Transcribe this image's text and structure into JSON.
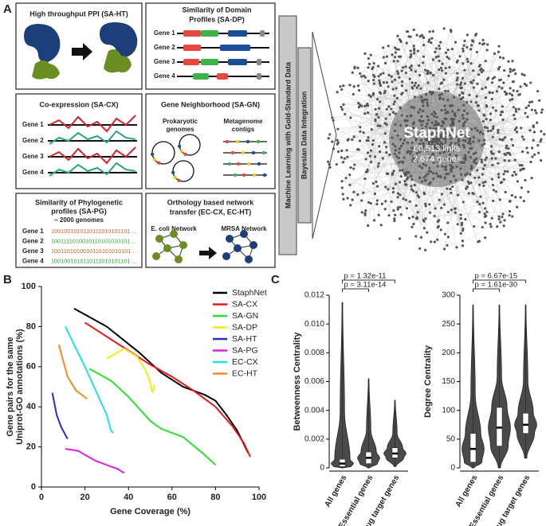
{
  "panel_labels": [
    "A",
    "B",
    "C"
  ],
  "diagram": {
    "ppi": {
      "title": "High throughput PPI (SA-HT)"
    },
    "domain": {
      "title": [
        "Similarity of Domain",
        "Profiles (SA-DP)"
      ],
      "genes": [
        "Gene 1",
        "Gene 2",
        "Gene 3",
        "Gene 4"
      ]
    },
    "coexpression": {
      "title": "Co-expression (SA-CX)",
      "genes": [
        "Gene 1",
        "Gene 2",
        "Gene 3",
        "Gene 4"
      ]
    },
    "neighborhood": {
      "title": "Gene Neighborhood (SA-GN)",
      "left": [
        "Prokaryotic",
        "genomes"
      ],
      "right": [
        "Metagenome",
        "contigs"
      ]
    },
    "phylogenetic": {
      "title": [
        "Similarity of Phylogenetic",
        "profiles (SA-PG)"
      ],
      "subtitle": "~ 2000 genomes",
      "genes": [
        "Gene 1",
        "Gene 2",
        "Gene 3",
        "Gene 4"
      ],
      "profiles": [
        "1001001010110111010101101 ...",
        "1001111010010110101010101 ...",
        "1001101010010110101010101 ...",
        "1001001010110111010101101 ..."
      ]
    },
    "orthology": {
      "title": [
        "Orthology based network",
        "transfer (EC-CX, EC-HT)"
      ],
      "left": "E. coli Network",
      "right": "MRSA Network"
    },
    "integration": [
      "Machine Learning with Gold-Standard Data",
      "Bayesian Data Integration"
    ],
    "network": {
      "title": "StaphNet",
      "links": "60,513 links",
      "genes": "2,674 genes"
    }
  },
  "chart_data": [
    {
      "type": "line",
      "xlabel": "Gene Coverage (%)",
      "ylabel": [
        "Gene pairs for the same",
        "Uniprot-GO annotations (%)"
      ],
      "xlim": [
        0,
        100
      ],
      "xticks": [
        0,
        20,
        40,
        60,
        80,
        100
      ],
      "ylim": [
        0,
        100
      ],
      "yticks": [
        0,
        20,
        40,
        60,
        80,
        100
      ],
      "legend": "upper right",
      "series": [
        {
          "name": "StaphNet",
          "color": "#000000",
          "x": [
            15,
            30,
            45,
            55,
            65,
            75,
            80,
            85,
            90,
            95
          ],
          "values": [
            89,
            80,
            67,
            57,
            50,
            46,
            43,
            36,
            28,
            17
          ]
        },
        {
          "name": "SA-CX",
          "color": "#e8191f",
          "x": [
            20,
            30,
            40,
            50,
            60,
            70,
            80,
            88,
            93,
            96
          ],
          "values": [
            82,
            75,
            68,
            61,
            55,
            48,
            40,
            30,
            22,
            15
          ]
        },
        {
          "name": "SA-GN",
          "color": "#2de02d",
          "x": [
            22,
            32,
            40,
            50,
            55,
            65,
            75,
            80
          ],
          "values": [
            59,
            53,
            45,
            33,
            29,
            25,
            16,
            11
          ]
        },
        {
          "name": "SA-DP",
          "color": "#f2ea1c",
          "x": [
            30,
            38,
            44,
            48,
            50,
            51,
            52
          ],
          "values": [
            64,
            69,
            65,
            58,
            52,
            47,
            51
          ]
        },
        {
          "name": "SA-HT",
          "color": "#2b2bc8",
          "x": [
            5,
            7,
            9,
            12
          ],
          "values": [
            47,
            36,
            30,
            24
          ]
        },
        {
          "name": "SA-PG",
          "color": "#e020e0",
          "x": [
            11,
            17,
            20,
            25,
            30,
            35,
            38
          ],
          "values": [
            19,
            18,
            16,
            13,
            11,
            9,
            7
          ]
        },
        {
          "name": "EC-CX",
          "color": "#1ee0e8",
          "x": [
            11,
            15,
            20,
            25,
            30,
            32,
            33
          ],
          "values": [
            80,
            71,
            60,
            48,
            36,
            28,
            27
          ]
        },
        {
          "name": "EC-HT",
          "color": "#f08a24",
          "x": [
            8,
            12,
            16,
            21
          ],
          "values": [
            71,
            55,
            48,
            44
          ]
        }
      ]
    },
    {
      "type": "violin",
      "ylabel": "Betweenness Centrality",
      "categories": [
        "All genes",
        "Essential genes",
        "Drug target genes"
      ],
      "ylim": [
        0,
        0.012
      ],
      "yticks": [
        0,
        0.002,
        0.004,
        0.006,
        0.008,
        {
          "value": 0.01,
          "label": "0.010"
        },
        0.012
      ],
      "min": [
        0,
        0,
        0.0001
      ],
      "q1": [
        0.0001,
        0.0003,
        0.0007
      ],
      "median": [
        0.0003,
        0.0007,
        0.001
      ],
      "q3": [
        0.0006,
        0.0011,
        0.0014
      ],
      "max": [
        0.0115,
        0.0062,
        0.0047
      ],
      "annotations": [
        "p = 3.11e-14",
        "p = 1.32e-11"
      ],
      "color": "#4a4a4a"
    },
    {
      "type": "violin",
      "ylabel": "Degree Centrality",
      "categories": [
        "All genes",
        "Essential genes",
        "Drug target genes"
      ],
      "ylim": [
        0,
        300
      ],
      "yticks": [
        0,
        50,
        100,
        150,
        200,
        250,
        300
      ],
      "min": [
        0,
        0,
        17
      ],
      "q1": [
        10,
        38,
        60
      ],
      "median": [
        33,
        70,
        75
      ],
      "q3": [
        60,
        105,
        95
      ],
      "max": [
        283,
        283,
        283
      ],
      "annotations": [
        "p = 1.61e-30",
        "p = 6.67e-15"
      ],
      "color": "#4a4a4a"
    }
  ]
}
